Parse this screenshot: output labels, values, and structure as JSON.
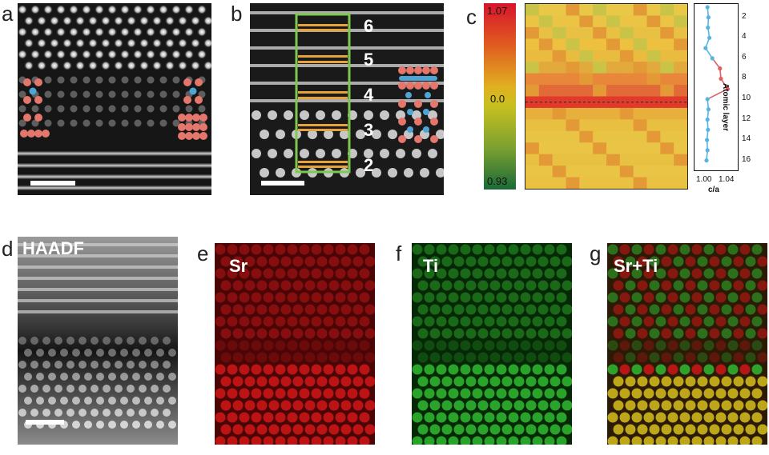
{
  "panels": {
    "a": {
      "label": "a"
    },
    "b": {
      "label": "b",
      "layers": [
        "6",
        "5",
        "4",
        "3",
        "2"
      ]
    },
    "c": {
      "label": "c"
    },
    "d": {
      "label": "d",
      "title": "HAADF"
    },
    "e": {
      "label": "e",
      "title": "Sr"
    },
    "f": {
      "label": "f",
      "title": "Ti"
    },
    "g": {
      "label": "g",
      "title": "Sr+Ti"
    }
  },
  "colorbar": {
    "max": "1.07",
    "mid": "0.0",
    "min": "0.93"
  },
  "colors": {
    "atom_red": "#e5766c",
    "atom_blue": "#4fa4d6",
    "frame_green": "#7ec850",
    "line_orange": "#e8a23a",
    "sr_red": "#d01818",
    "ti_green": "#30b830",
    "heat_yellow": "#e9c23b",
    "heat_red": "#e03c28",
    "plot_blue": "#55b5e0",
    "plot_red": "#e06060"
  },
  "chart_data": {
    "type": "line",
    "xlabel": "c/a",
    "ylabel": "Atomic layer",
    "x_ticks": [
      "1.00",
      "1.04"
    ],
    "y_ticks": [
      "2",
      "4",
      "6",
      "8",
      "10",
      "12",
      "14",
      "16"
    ],
    "xlim": [
      0.975,
      1.065
    ],
    "ylim": [
      1,
      16.5
    ],
    "series": [
      {
        "points": [
          {
            "layer": 1,
            "ca": 1.002
          },
          {
            "layer": 2,
            "ca": 1.004
          },
          {
            "layer": 3,
            "ca": 1.003
          },
          {
            "layer": 4,
            "ca": 1.006
          },
          {
            "layer": 5,
            "ca": 0.998
          },
          {
            "layer": 6,
            "ca": 1.012
          },
          {
            "layer": 7,
            "ca": 1.028
          },
          {
            "layer": 8,
            "ca": 1.03
          },
          {
            "layer": 9,
            "ca": 1.044
          },
          {
            "layer": 10,
            "ca": 1.002
          },
          {
            "layer": 11,
            "ca": 1.004
          },
          {
            "layer": 12,
            "ca": 1.002
          },
          {
            "layer": 13,
            "ca": 1.003
          },
          {
            "layer": 14,
            "ca": 1.001
          },
          {
            "layer": 15,
            "ca": 1.002
          },
          {
            "layer": 16,
            "ca": 1.0
          }
        ]
      }
    ]
  }
}
